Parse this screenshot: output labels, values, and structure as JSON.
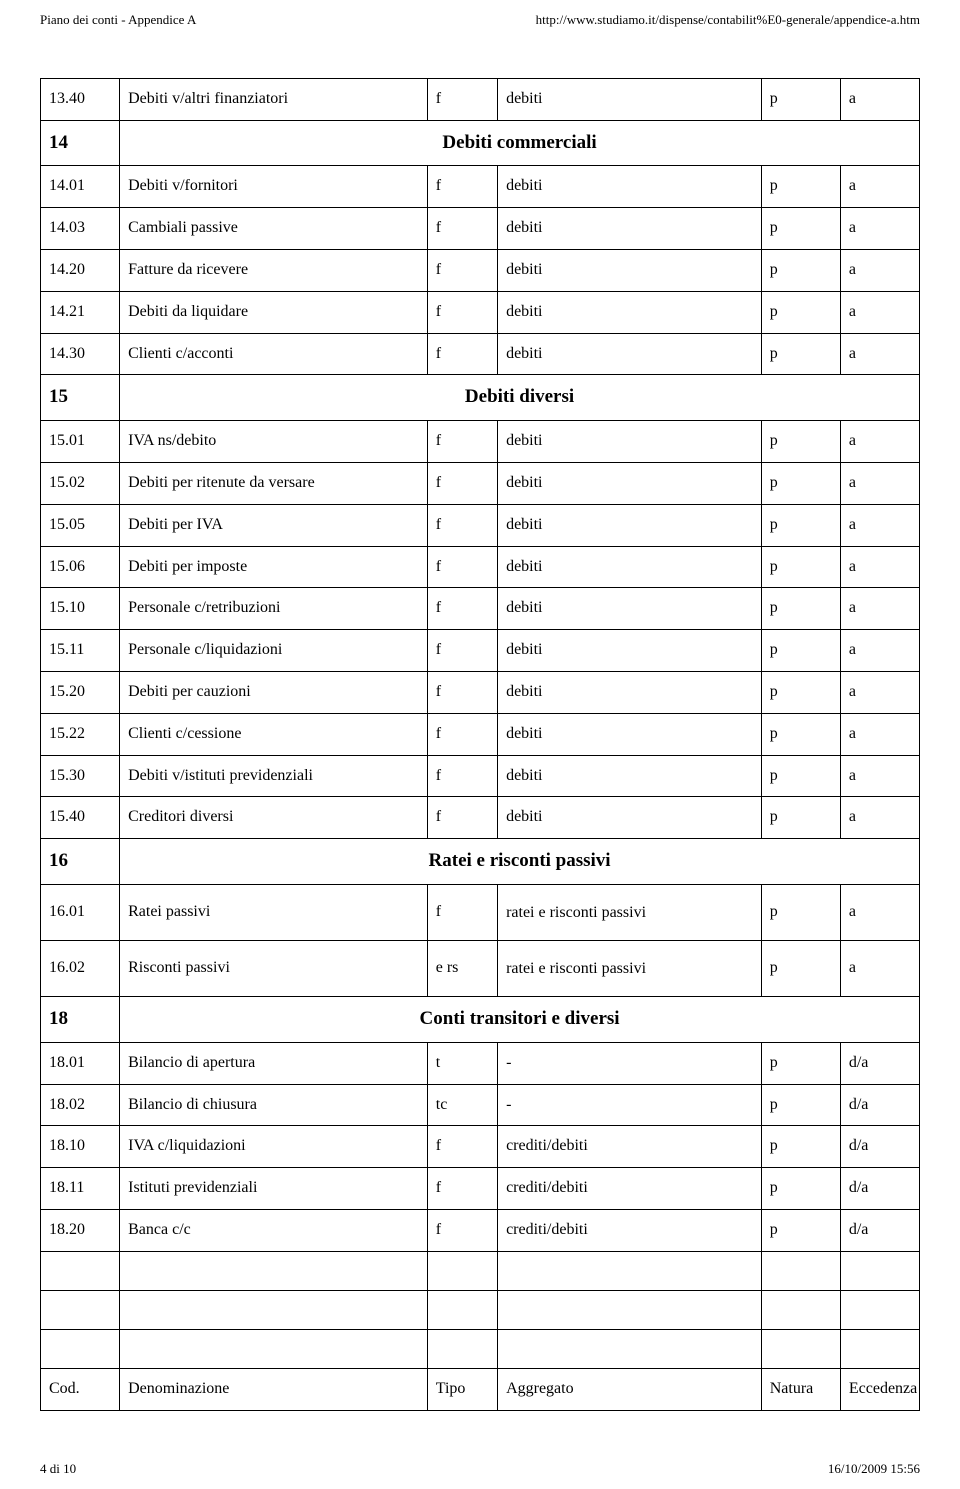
{
  "header": {
    "left": "Piano dei conti - Appendice A",
    "right": "http://www.studiamo.it/dispense/contabilit%E0-generale/appendice-a.htm"
  },
  "rows": [
    {
      "type": "data",
      "code": "13.40",
      "name": "Debiti v/altri finanziatori",
      "tipo": "f",
      "agg": "debiti",
      "nat": "p",
      "ecc": "a"
    },
    {
      "type": "section",
      "code": "14",
      "title": "Debiti commerciali"
    },
    {
      "type": "data",
      "code": "14.01",
      "name": "Debiti v/fornitori",
      "tipo": "f",
      "agg": "debiti",
      "nat": "p",
      "ecc": "a"
    },
    {
      "type": "data",
      "code": "14.03",
      "name": "Cambiali passive",
      "tipo": "f",
      "agg": "debiti",
      "nat": "p",
      "ecc": "a"
    },
    {
      "type": "data",
      "code": "14.20",
      "name": "Fatture da ricevere",
      "tipo": "f",
      "agg": "debiti",
      "nat": "p",
      "ecc": "a"
    },
    {
      "type": "data",
      "code": "14.21",
      "name": "Debiti da liquidare",
      "tipo": "f",
      "agg": "debiti",
      "nat": "p",
      "ecc": "a"
    },
    {
      "type": "data",
      "code": "14.30",
      "name": "Clienti c/acconti",
      "tipo": "f",
      "agg": "debiti",
      "nat": "p",
      "ecc": "a"
    },
    {
      "type": "section",
      "code": "15",
      "title": "Debiti diversi"
    },
    {
      "type": "data",
      "code": "15.01",
      "name": "IVA ns/debito",
      "tipo": "f",
      "agg": "debiti",
      "nat": "p",
      "ecc": "a"
    },
    {
      "type": "data",
      "code": "15.02",
      "name": "Debiti per ritenute da versare",
      "tipo": "f",
      "agg": "debiti",
      "nat": "p",
      "ecc": "a"
    },
    {
      "type": "data",
      "code": "15.05",
      "name": "Debiti per IVA",
      "tipo": "f",
      "agg": "debiti",
      "nat": "p",
      "ecc": "a"
    },
    {
      "type": "data",
      "code": "15.06",
      "name": "Debiti per imposte",
      "tipo": "f",
      "agg": "debiti",
      "nat": "p",
      "ecc": "a"
    },
    {
      "type": "data",
      "code": "15.10",
      "name": "Personale c/retribuzioni",
      "tipo": "f",
      "agg": "debiti",
      "nat": "p",
      "ecc": "a"
    },
    {
      "type": "data",
      "code": "15.11",
      "name": "Personale c/liquidazioni",
      "tipo": "f",
      "agg": "debiti",
      "nat": "p",
      "ecc": "a"
    },
    {
      "type": "data",
      "code": "15.20",
      "name": "Debiti per cauzioni",
      "tipo": "f",
      "agg": "debiti",
      "nat": "p",
      "ecc": "a"
    },
    {
      "type": "data",
      "code": "15.22",
      "name": "Clienti c/cessione",
      "tipo": "f",
      "agg": "debiti",
      "nat": "p",
      "ecc": "a"
    },
    {
      "type": "data",
      "code": "15.30",
      "name": "Debiti v/istituti previdenziali",
      "tipo": "f",
      "agg": "debiti",
      "nat": "p",
      "ecc": "a"
    },
    {
      "type": "data",
      "code": "15.40",
      "name": "Creditori diversi",
      "tipo": "f",
      "agg": "debiti",
      "nat": "p",
      "ecc": "a"
    },
    {
      "type": "section",
      "code": "16",
      "title": "Ratei e risconti passivi"
    },
    {
      "type": "data",
      "code": "16.01",
      "name": "Ratei passivi",
      "tipo": "f",
      "agg": "ratei e risconti passivi",
      "nat": "p",
      "ecc": "a",
      "multiline": true
    },
    {
      "type": "data",
      "code": "16.02",
      "name": "Risconti passivi",
      "tipo": "e rs",
      "agg": "ratei e risconti passivi",
      "nat": "p",
      "ecc": "a",
      "multiline": true
    },
    {
      "type": "section",
      "code": "18",
      "title": "Conti transitori e diversi"
    },
    {
      "type": "data",
      "code": "18.01",
      "name": "Bilancio di apertura",
      "tipo": "t",
      "agg": "-",
      "nat": "p",
      "ecc": "d/a"
    },
    {
      "type": "data",
      "code": "18.02",
      "name": "Bilancio di chiusura",
      "tipo": "tc",
      "agg": "-",
      "nat": "p",
      "ecc": "d/a"
    },
    {
      "type": "data",
      "code": "18.10",
      "name": "IVA c/liquidazioni",
      "tipo": "f",
      "agg": "crediti/debiti",
      "nat": "p",
      "ecc": "d/a"
    },
    {
      "type": "data",
      "code": "18.11",
      "name": "Istituti previdenziali",
      "tipo": "f",
      "agg": "crediti/debiti",
      "nat": "p",
      "ecc": "d/a"
    },
    {
      "type": "data",
      "code": "18.20",
      "name": "Banca  c/c",
      "tipo": "f",
      "agg": "crediti/debiti",
      "nat": "p",
      "ecc": "d/a"
    },
    {
      "type": "empty"
    },
    {
      "type": "empty"
    },
    {
      "type": "empty"
    },
    {
      "type": "data",
      "code": "Cod.",
      "name": "Denominazione",
      "tipo": "Tipo",
      "agg": "Aggregato",
      "nat": "Natura",
      "ecc": "Eccedenza"
    }
  ],
  "footer": {
    "left": "4 di 10",
    "right": "16/10/2009 15:56"
  }
}
